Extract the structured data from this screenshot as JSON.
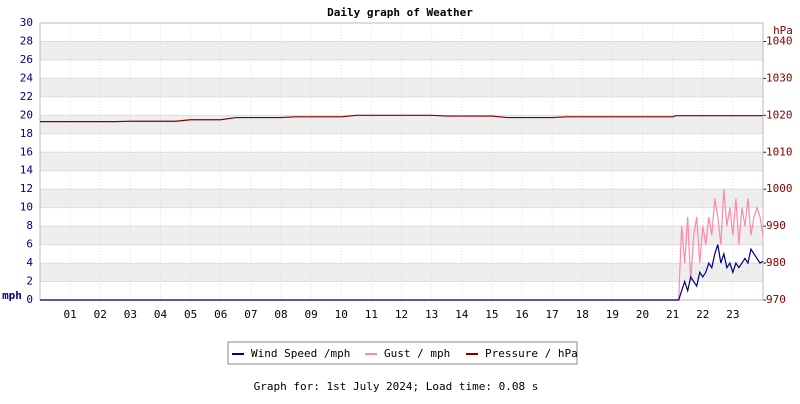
{
  "chart_data": {
    "type": "line",
    "title": "Daily graph of Weather",
    "y_label": "mph",
    "y2_label": "hPa",
    "footer": "Graph for: 1st July 2024; Load time: 0.08 s",
    "xlim": [
      0,
      24
    ],
    "xticks": [
      {
        "value": 1,
        "label": "01"
      },
      {
        "value": 2,
        "label": "02"
      },
      {
        "value": 3,
        "label": "03"
      },
      {
        "value": 4,
        "label": "04"
      },
      {
        "value": 5,
        "label": "05"
      },
      {
        "value": 6,
        "label": "06"
      },
      {
        "value": 7,
        "label": "07"
      },
      {
        "value": 8,
        "label": "08"
      },
      {
        "value": 9,
        "label": "09"
      },
      {
        "value": 10,
        "label": "10"
      },
      {
        "value": 11,
        "label": "11"
      },
      {
        "value": 12,
        "label": "12"
      },
      {
        "value": 13,
        "label": "13"
      },
      {
        "value": 14,
        "label": "14"
      },
      {
        "value": 15,
        "label": "15"
      },
      {
        "value": 16,
        "label": "16"
      },
      {
        "value": 17,
        "label": "17"
      },
      {
        "value": 18,
        "label": "18"
      },
      {
        "value": 19,
        "label": "19"
      },
      {
        "value": 20,
        "label": "20"
      },
      {
        "value": 21,
        "label": "21"
      },
      {
        "value": 22,
        "label": "22"
      },
      {
        "value": 23,
        "label": "23"
      }
    ],
    "ylim": [
      0,
      30
    ],
    "yticks": [
      0,
      2,
      4,
      6,
      8,
      10,
      12,
      14,
      16,
      18,
      20,
      22,
      24,
      26,
      28,
      30
    ],
    "y2lim": [
      970,
      1045
    ],
    "y2ticks": [
      970,
      980,
      990,
      1000,
      1010,
      1020,
      1030,
      1040
    ],
    "grid": true,
    "x": [
      0,
      0.5,
      1,
      1.5,
      2,
      2.5,
      3,
      3.5,
      4,
      4.5,
      5,
      5.5,
      6,
      6.5,
      7,
      7.5,
      8,
      8.5,
      9,
      9.5,
      10,
      10.5,
      11,
      11.5,
      12,
      12.5,
      13,
      13.5,
      14,
      14.5,
      15,
      15.5,
      16,
      16.5,
      17,
      17.5,
      18,
      18.5,
      19,
      19.5,
      20,
      20.5,
      21,
      21.1,
      21.2,
      21.3,
      21.4,
      21.5,
      21.6,
      21.7,
      21.8,
      21.9,
      22,
      22.1,
      22.2,
      22.3,
      22.4,
      22.5,
      22.6,
      22.7,
      22.8,
      22.9,
      23,
      23.1,
      23.2,
      23.3,
      23.4,
      23.5,
      23.6,
      23.7,
      23.8,
      23.9,
      24
    ],
    "series": [
      {
        "name": "Wind Speed /mph",
        "color": "#000080",
        "values": [
          0,
          0,
          0,
          0,
          0,
          0,
          0,
          0,
          0,
          0,
          0,
          0,
          0,
          0,
          0,
          0,
          0,
          0,
          0,
          0,
          0,
          0,
          0,
          0,
          0,
          0,
          0,
          0,
          0,
          0,
          0,
          0,
          0,
          0,
          0,
          0,
          0,
          0,
          0,
          0,
          0,
          0,
          0,
          0,
          0,
          1,
          2,
          1,
          2.5,
          2,
          1.5,
          3,
          2.5,
          3,
          4,
          3.5,
          5,
          6,
          4,
          5,
          3.5,
          4,
          3,
          4,
          3.5,
          4,
          4.5,
          4,
          5.5,
          5,
          4.5,
          4,
          4.2
        ]
      },
      {
        "name": "Gust / mph",
        "color": "#ff88aa",
        "values": [
          0,
          0,
          0,
          0,
          0,
          0,
          0,
          0,
          0,
          0,
          0,
          0,
          0,
          0,
          0,
          0,
          0,
          0,
          0,
          0,
          0,
          0,
          0,
          0,
          0,
          0,
          0,
          0,
          0,
          0,
          0,
          0,
          0,
          0,
          0,
          0,
          0,
          0,
          0,
          0,
          0,
          0,
          0,
          0,
          0,
          8,
          4,
          9,
          2,
          7,
          9,
          4,
          8,
          6,
          9,
          7,
          11,
          9,
          6,
          12,
          8,
          10,
          7,
          11,
          6,
          10,
          8,
          11,
          7,
          9,
          10,
          9,
          7
        ]
      },
      {
        "name": "Pressure / hPa",
        "color": "#800000",
        "axis": "y2",
        "values": [
          1018.3,
          1018.3,
          1018.3,
          1018.3,
          1018.3,
          1018.3,
          1018.4,
          1018.4,
          1018.4,
          1018.4,
          1018.8,
          1018.8,
          1018.8,
          1019.4,
          1019.4,
          1019.4,
          1019.4,
          1019.6,
          1019.6,
          1019.6,
          1019.6,
          1020,
          1020,
          1020,
          1020,
          1020,
          1020,
          1019.8,
          1019.8,
          1019.8,
          1019.8,
          1019.4,
          1019.4,
          1019.4,
          1019.4,
          1019.6,
          1019.6,
          1019.6,
          1019.6,
          1019.6,
          1019.6,
          1019.6,
          1019.6,
          1019.9,
          1019.9,
          1019.9,
          1019.9,
          1019.9,
          1019.9,
          1019.9,
          1019.9,
          1019.9,
          1019.9,
          1019.9,
          1019.9,
          1019.9,
          1019.9,
          1019.9,
          1019.9,
          1019.9,
          1019.9,
          1019.9,
          1019.9,
          1019.9,
          1019.9,
          1019.9,
          1019.9,
          1019.9,
          1019.9,
          1019.9,
          1019.9,
          1019.9,
          1019.9
        ]
      }
    ]
  }
}
